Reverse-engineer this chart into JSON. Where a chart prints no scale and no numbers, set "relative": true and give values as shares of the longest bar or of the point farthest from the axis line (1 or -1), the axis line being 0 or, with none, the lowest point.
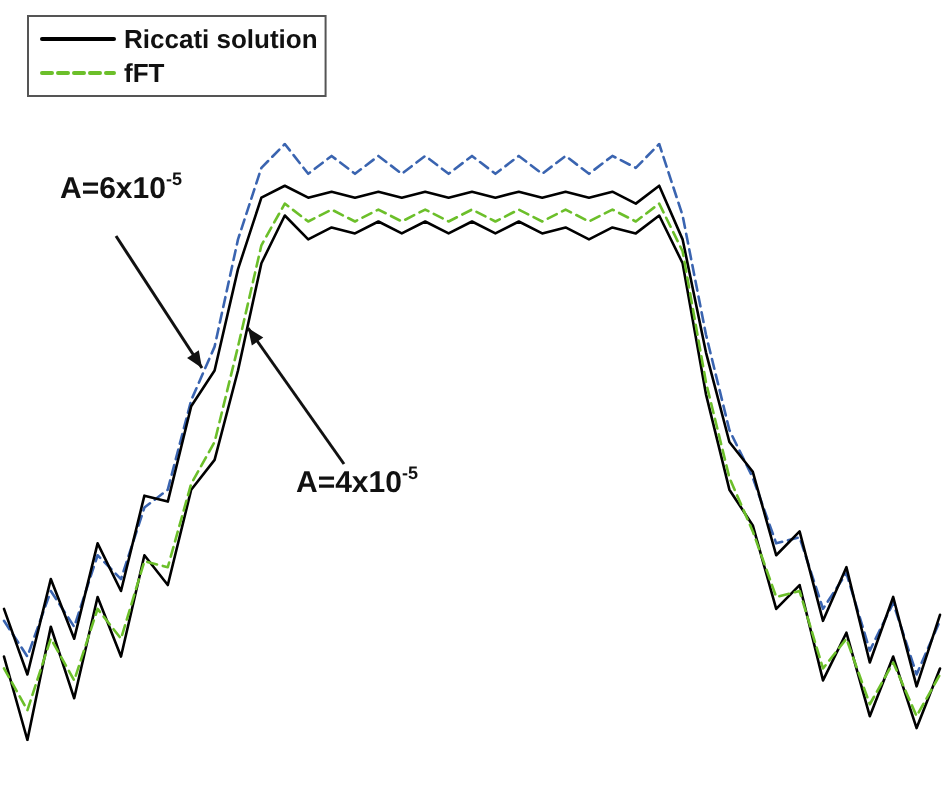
{
  "chart_data": {
    "type": "line",
    "relative": true,
    "categories": [
      null,
      null,
      null,
      null,
      null,
      null,
      null,
      null,
      null,
      null,
      null,
      null,
      null,
      null,
      null,
      null,
      null,
      null,
      null,
      null,
      null,
      null,
      null,
      null,
      null,
      null,
      null,
      null,
      null,
      null,
      null,
      null,
      null,
      null,
      null,
      null,
      null,
      null,
      null,
      null,
      null
    ],
    "series": [
      {
        "color": "#3a64b0",
        "line_style": "dashed",
        "values": [
          0.2,
          0.14,
          0.25,
          0.19,
          0.31,
          0.27,
          0.39,
          0.42,
          0.57,
          0.66,
          0.84,
          0.96,
          1.0,
          0.95,
          0.98,
          0.95,
          0.98,
          0.95,
          0.98,
          0.95,
          0.98,
          0.95,
          0.98,
          0.95,
          0.98,
          0.95,
          0.98,
          0.96,
          1.0,
          0.88,
          0.68,
          0.52,
          0.44,
          0.33,
          0.34,
          0.22,
          0.28,
          0.15,
          0.23,
          0.11,
          0.2
        ]
      },
      {
        "name": "Riccati solution",
        "color": "#000000",
        "line_style": "solid",
        "values": [
          0.22,
          0.11,
          0.27,
          0.17,
          0.33,
          0.25,
          0.41,
          0.4,
          0.56,
          0.62,
          0.79,
          0.91,
          0.93,
          0.91,
          0.92,
          0.91,
          0.92,
          0.91,
          0.92,
          0.91,
          0.92,
          0.91,
          0.92,
          0.91,
          0.92,
          0.91,
          0.92,
          0.9,
          0.93,
          0.84,
          0.65,
          0.5,
          0.45,
          0.31,
          0.35,
          0.2,
          0.29,
          0.13,
          0.24,
          0.09,
          0.21
        ]
      },
      {
        "color": "#000000",
        "line_style": "solid",
        "values": [
          0.14,
          0.0,
          0.19,
          0.07,
          0.24,
          0.14,
          0.31,
          0.26,
          0.42,
          0.47,
          0.62,
          0.8,
          0.88,
          0.84,
          0.86,
          0.85,
          0.87,
          0.85,
          0.87,
          0.85,
          0.87,
          0.85,
          0.87,
          0.85,
          0.86,
          0.84,
          0.86,
          0.85,
          0.88,
          0.8,
          0.58,
          0.42,
          0.36,
          0.22,
          0.26,
          0.1,
          0.18,
          0.04,
          0.14,
          0.02,
          0.12
        ]
      },
      {
        "name": "fFT",
        "color": "#6cbf2a",
        "line_style": "dashed",
        "values": [
          0.12,
          0.05,
          0.17,
          0.1,
          0.22,
          0.17,
          0.3,
          0.29,
          0.43,
          0.5,
          0.66,
          0.83,
          0.9,
          0.87,
          0.89,
          0.87,
          0.89,
          0.87,
          0.89,
          0.87,
          0.89,
          0.87,
          0.89,
          0.87,
          0.89,
          0.87,
          0.89,
          0.87,
          0.9,
          0.82,
          0.6,
          0.44,
          0.35,
          0.24,
          0.25,
          0.12,
          0.17,
          0.06,
          0.13,
          0.04,
          0.11
        ]
      }
    ],
    "annotations": [
      "A=6x10$^{-5}$",
      "A=4x10$^{-5}$"
    ],
    "legend": "top left",
    "marker": "none",
    "grid": false,
    "tick_labels": false
  }
}
